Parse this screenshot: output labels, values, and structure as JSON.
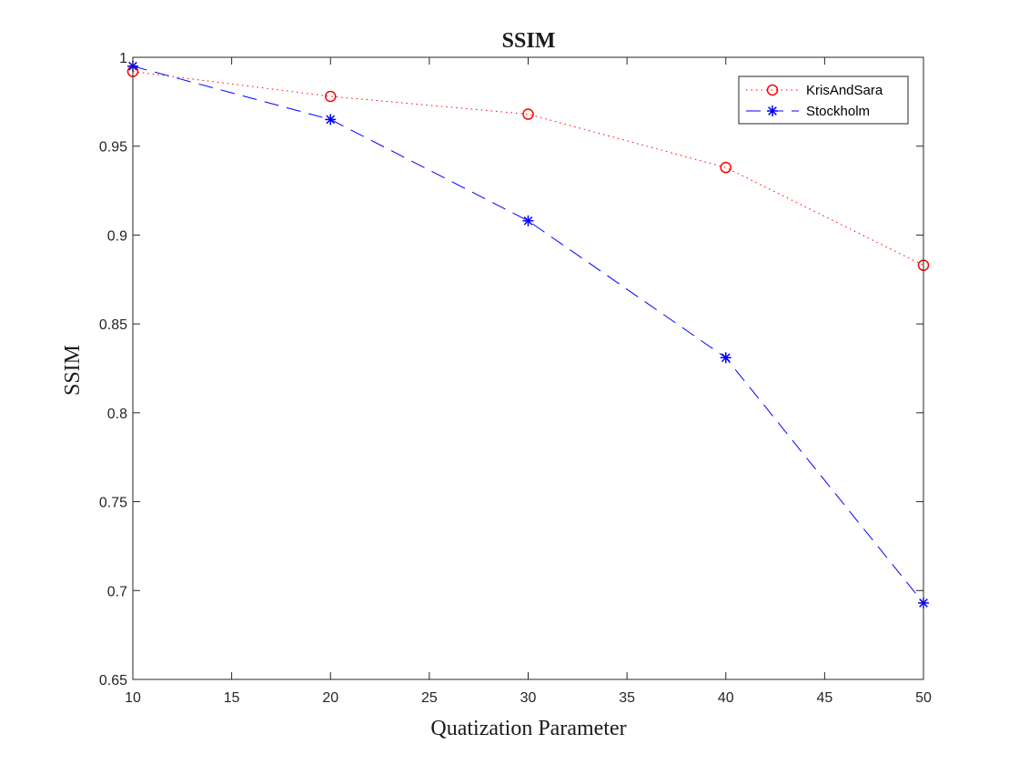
{
  "chart_data": {
    "type": "line",
    "title": "SSIM",
    "xlabel": "Quatization Parameter",
    "ylabel": "SSIM",
    "xlim": [
      10,
      50
    ],
    "ylim": [
      0.65,
      1.0
    ],
    "xticks": [
      10,
      15,
      20,
      25,
      30,
      35,
      40,
      45,
      50
    ],
    "yticks": [
      0.65,
      0.7,
      0.75,
      0.8,
      0.85,
      0.9,
      0.95,
      1.0
    ],
    "xtick_labels": [
      "10",
      "15",
      "20",
      "25",
      "30",
      "35",
      "40",
      "45",
      "50"
    ],
    "ytick_labels": [
      "0.65",
      "0.7",
      "0.75",
      "0.8",
      "0.85",
      "0.9",
      "0.95",
      "1"
    ],
    "x": [
      10,
      20,
      30,
      40,
      50
    ],
    "grid": false,
    "legend_position": "top-right",
    "series": [
      {
        "name": "KrisAndSara",
        "values": [
          0.992,
          0.978,
          0.968,
          0.938,
          0.883
        ],
        "color": "#ff0000",
        "line_style": "dotted",
        "marker": "circle"
      },
      {
        "name": "Stockholm",
        "values": [
          0.995,
          0.965,
          0.908,
          0.831,
          0.693
        ],
        "color": "#0000ff",
        "line_style": "dashed",
        "marker": "asterisk"
      }
    ]
  }
}
